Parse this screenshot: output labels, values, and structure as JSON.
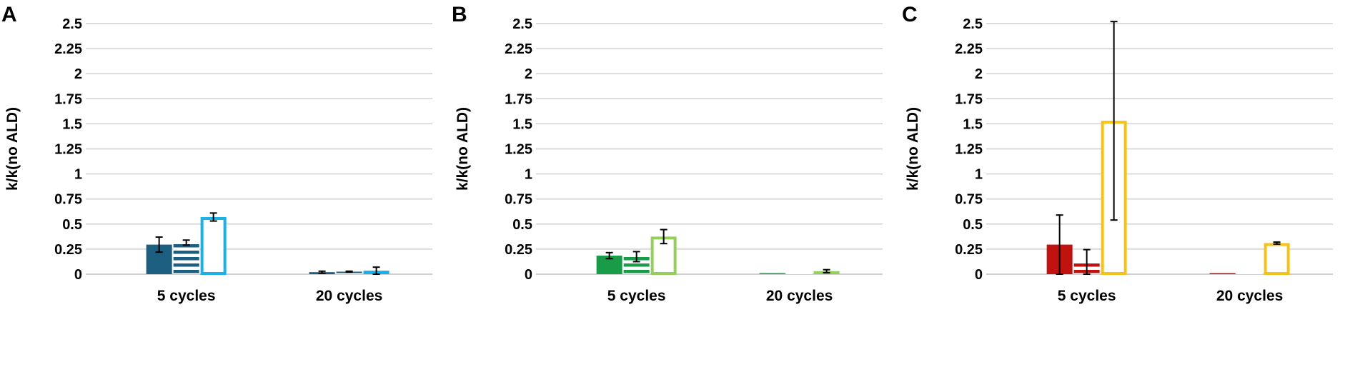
{
  "chart_data": [
    {
      "panel_label": "A",
      "type": "bar",
      "ylabel": "k/k(no ALD)",
      "ylim": [
        0,
        2.5
      ],
      "yticks": [
        "0",
        "0.25",
        "0.5",
        "0.75",
        "1",
        "1.25",
        "1.5",
        "1.75",
        "2",
        "2.25",
        "2.5"
      ],
      "grid": true,
      "categories": [
        "5 cycles",
        "20 cycles"
      ],
      "colors": {
        "dark": "#1b5e80",
        "light": "#1ab0e8"
      },
      "series": [
        {
          "style": "solid",
          "values": [
            0.295,
            0.02
          ],
          "errors": [
            0.075,
            0.01
          ]
        },
        {
          "style": "striped",
          "values": [
            0.315,
            0.025
          ],
          "errors": [
            0.025,
            0.005
          ]
        },
        {
          "style": "hollow",
          "values": [
            0.57,
            0.035
          ],
          "errors": [
            0.04,
            0.035
          ]
        }
      ]
    },
    {
      "panel_label": "B",
      "type": "bar",
      "ylabel": "k/k(no ALD)",
      "ylim": [
        0,
        2.5
      ],
      "yticks": [
        "0",
        "0.25",
        "0.5",
        "0.75",
        "1",
        "1.25",
        "1.5",
        "1.75",
        "2",
        "2.25",
        "2.5"
      ],
      "grid": true,
      "categories": [
        "5 cycles",
        "20 cycles"
      ],
      "colors": {
        "dark": "#189c48",
        "light": "#94cf5a"
      },
      "series": [
        {
          "style": "solid",
          "values": [
            0.185,
            0.005
          ],
          "errors": [
            0.03,
            0.0
          ]
        },
        {
          "style": "striped",
          "values": [
            0.175,
            0.005
          ],
          "errors": [
            0.05,
            0.0
          ]
        },
        {
          "style": "hollow",
          "values": [
            0.375,
            0.03
          ],
          "errors": [
            0.07,
            0.015
          ]
        }
      ]
    },
    {
      "panel_label": "C",
      "type": "bar",
      "ylabel": "k/k(no ALD)",
      "ylim": [
        0,
        2.5
      ],
      "yticks": [
        "0",
        "0.25",
        "0.5",
        "0.75",
        "1",
        "1.25",
        "1.5",
        "1.75",
        "2",
        "2.25",
        "2.5"
      ],
      "grid": true,
      "categories": [
        "5 cycles",
        "20 cycles"
      ],
      "colors": {
        "dark": "#c0120f",
        "light": "#f5c218"
      },
      "series": [
        {
          "style": "solid",
          "values": [
            0.295,
            0.005
          ],
          "errors": [
            0.295,
            0.0
          ]
        },
        {
          "style": "striped",
          "values": [
            0.12,
            0.005
          ],
          "errors": [
            0.125,
            0.0
          ]
        },
        {
          "style": "hollow",
          "values": [
            1.53,
            0.31
          ],
          "errors": [
            0.99,
            0.01
          ]
        }
      ]
    }
  ]
}
